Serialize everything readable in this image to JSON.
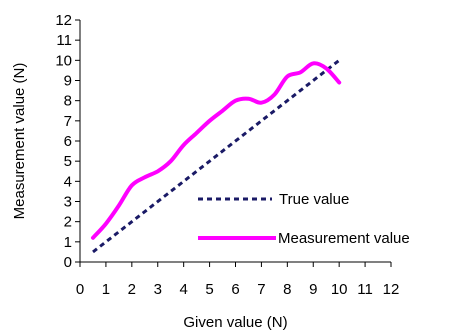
{
  "chart_data": {
    "type": "line",
    "title": "",
    "xlabel": "Given value (N)",
    "ylabel": "Measurement value (N)",
    "xlim": [
      0,
      12
    ],
    "ylim": [
      0,
      12
    ],
    "xticks": [
      "0",
      "1",
      "2",
      "3",
      "4",
      "5",
      "6",
      "7",
      "8",
      "9",
      "10",
      "11",
      "12"
    ],
    "yticks": [
      "0",
      "1",
      "2",
      "3",
      "4",
      "5",
      "6",
      "7",
      "8",
      "9",
      "10",
      "11",
      "12"
    ],
    "grid": false,
    "legend_position": "lower-right",
    "series": [
      {
        "name": "True value",
        "style": "dashed",
        "color": "#1a1a66",
        "x": [
          0.5,
          10
        ],
        "y": [
          0.5,
          10
        ]
      },
      {
        "name": "Measurement value",
        "style": "solid",
        "color": "#ff00ff",
        "x": [
          0.5,
          1.0,
          1.5,
          2.0,
          2.5,
          3.0,
          3.5,
          4.0,
          4.5,
          5.0,
          5.5,
          6.0,
          6.5,
          7.0,
          7.5,
          8.0,
          8.5,
          9.0,
          9.5,
          10.0
        ],
        "y": [
          1.2,
          1.9,
          2.8,
          3.8,
          4.2,
          4.5,
          5.0,
          5.8,
          6.4,
          7.0,
          7.5,
          8.0,
          8.1,
          7.9,
          8.3,
          9.2,
          9.4,
          9.85,
          9.6,
          8.9
        ]
      }
    ]
  }
}
